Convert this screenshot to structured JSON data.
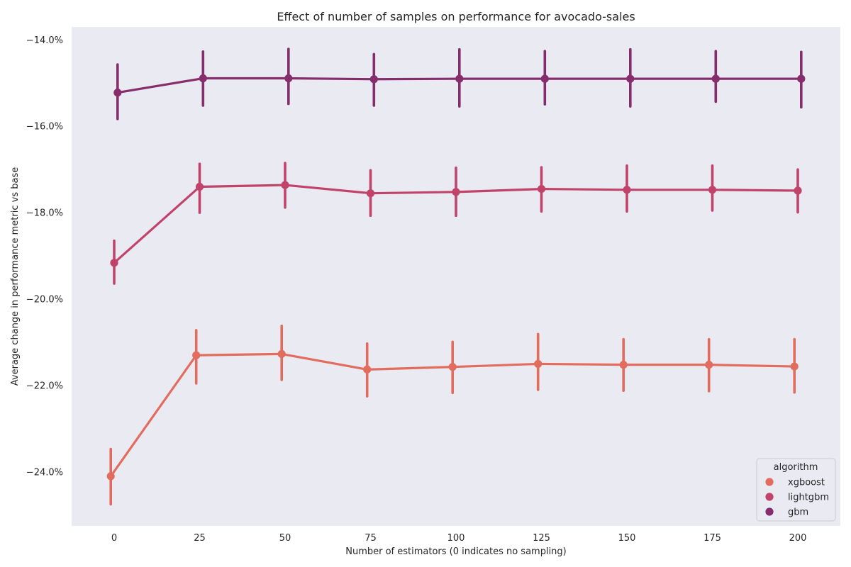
{
  "chart_data": {
    "type": "line",
    "title": "Effect of number of samples on performance for avocado-sales",
    "xlabel": "Number of estimators (0 indicates no sampling)",
    "ylabel": "Average change in performance metric vs base",
    "categories": [
      "0",
      "25",
      "50",
      "75",
      "100",
      "125",
      "150",
      "175",
      "200"
    ],
    "y_ticks": [
      -24.0,
      -22.0,
      -20.0,
      -18.0,
      -16.0,
      -14.0
    ],
    "y_tick_labels": [
      "−24.0%",
      "−22.0%",
      "−20.0%",
      "−18.0%",
      "−16.0%",
      "−14.0%"
    ],
    "ylim": [
      -25.25,
      -13.7
    ],
    "grid": false,
    "background": "#eaeaf2",
    "legend": {
      "title": "algorithm",
      "placement": "lower-right"
    },
    "series": [
      {
        "name": "xgboost",
        "color": "#e26c5d",
        "values": [
          -24.1,
          -21.3,
          -21.27,
          -21.63,
          -21.57,
          -21.5,
          -21.52,
          -21.52,
          -21.56
        ],
        "ci_low": [
          -24.75,
          -21.95,
          -21.87,
          -22.25,
          -22.17,
          -22.1,
          -22.12,
          -22.13,
          -22.16
        ],
        "ci_high": [
          -23.47,
          -20.72,
          -20.62,
          -21.03,
          -20.99,
          -20.81,
          -20.93,
          -20.93,
          -20.93
        ]
      },
      {
        "name": "lightgbm",
        "color": "#c1436a",
        "values": [
          -19.16,
          -17.4,
          -17.36,
          -17.55,
          -17.52,
          -17.45,
          -17.47,
          -17.47,
          -17.49
        ],
        "ci_low": [
          -19.64,
          -18.0,
          -17.88,
          -18.07,
          -18.07,
          -17.97,
          -17.97,
          -17.95,
          -17.99
        ],
        "ci_high": [
          -18.65,
          -16.87,
          -16.85,
          -17.02,
          -16.96,
          -16.95,
          -16.91,
          -16.91,
          -17.0
        ]
      },
      {
        "name": "gbm",
        "color": "#862d6c",
        "values": [
          -15.22,
          -14.89,
          -14.89,
          -14.91,
          -14.9,
          -14.9,
          -14.9,
          -14.9,
          -14.9
        ],
        "ci_low": [
          -15.83,
          -15.52,
          -15.48,
          -15.52,
          -15.54,
          -15.49,
          -15.54,
          -15.43,
          -15.56
        ],
        "ci_high": [
          -14.57,
          -14.27,
          -14.21,
          -14.33,
          -14.22,
          -14.26,
          -14.22,
          -14.26,
          -14.28
        ]
      }
    ]
  }
}
